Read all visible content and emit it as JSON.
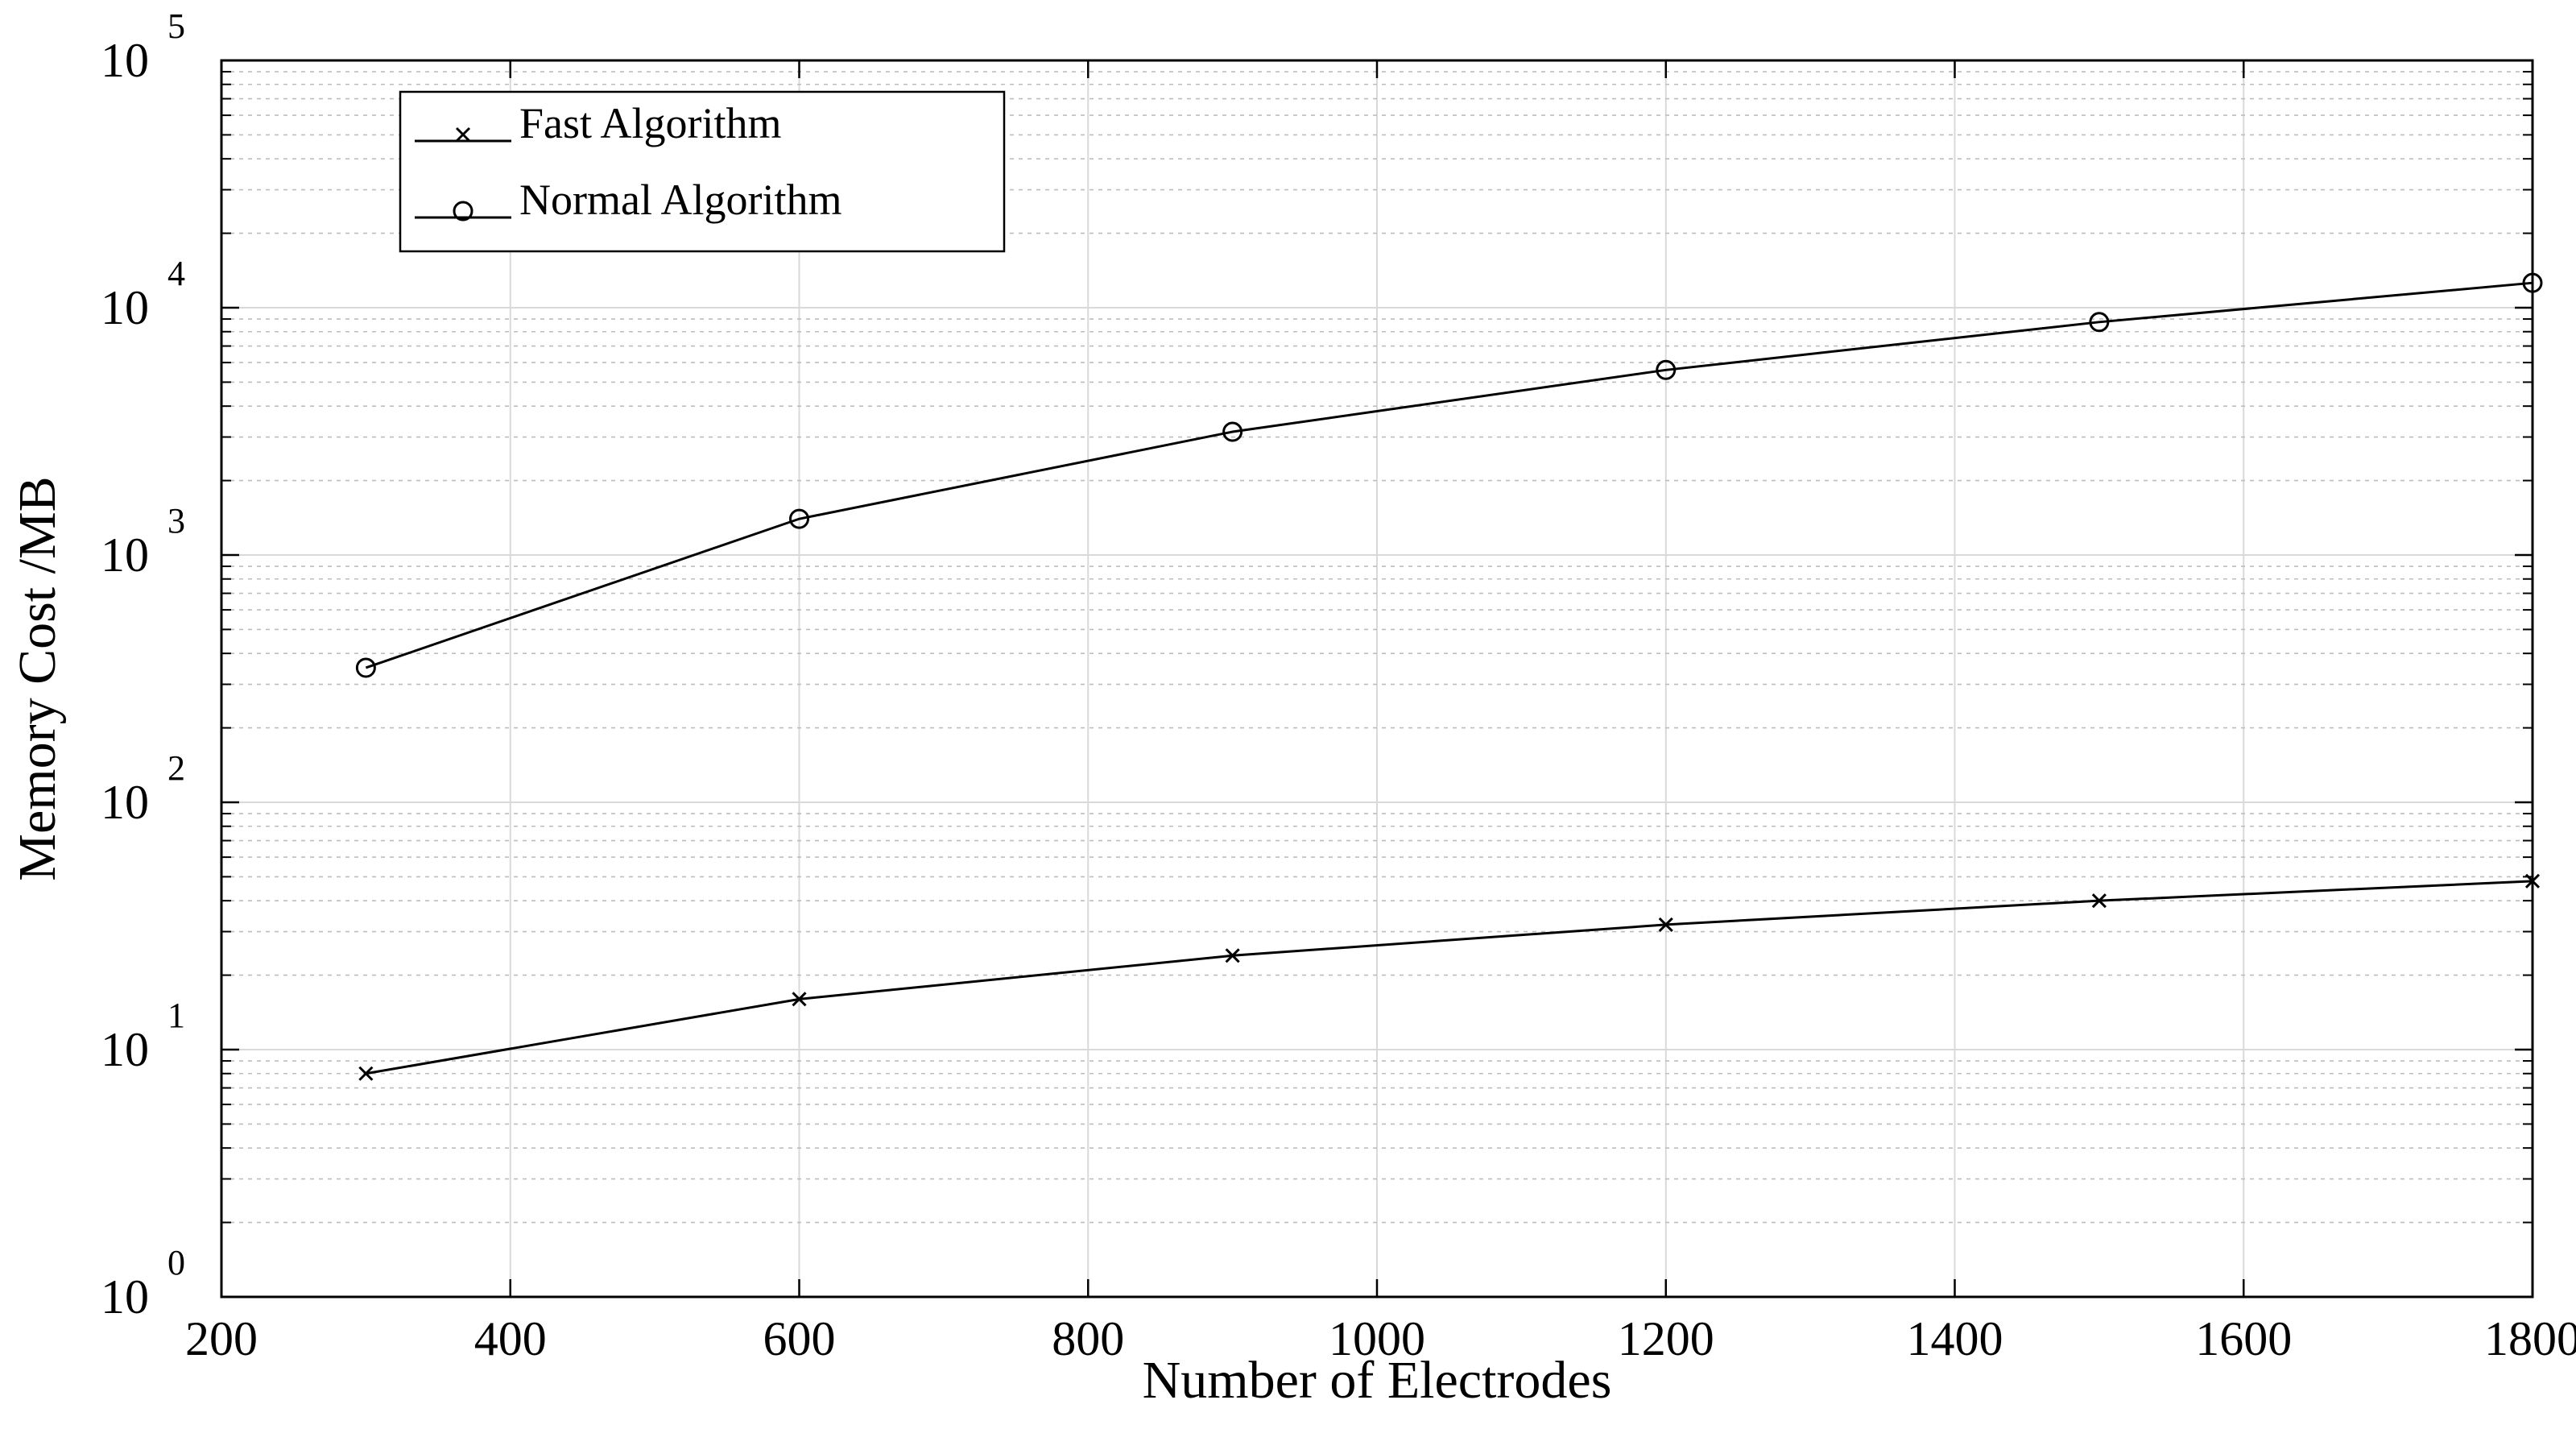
{
  "chart_data": {
    "type": "line",
    "xlabel": "Number of Electrodes",
    "ylabel": "Memory Cost /MB",
    "xlim": [
      200,
      1800
    ],
    "ylim": [
      1,
      100000
    ],
    "yscale": "log",
    "grid": true,
    "minor_grid": true,
    "legend_position": "top-left",
    "x_ticks": [
      200,
      400,
      600,
      800,
      1000,
      1200,
      1400,
      1600,
      1800
    ],
    "x_tick_labels": [
      "200",
      "400",
      "600",
      "800",
      "1000",
      "1200",
      "1400",
      "1600",
      "1800"
    ],
    "y_ticks": [
      1,
      10,
      100,
      1000,
      10000,
      100000
    ],
    "y_tick_base": "10",
    "y_tick_exponents": [
      "0",
      "1",
      "2",
      "3",
      "4",
      "5"
    ],
    "series": [
      {
        "name": "Fast Algorithm",
        "marker": "x",
        "x": [
          300,
          600,
          900,
          1200,
          1500,
          1800
        ],
        "y": [
          8,
          16,
          24,
          32,
          40,
          48
        ]
      },
      {
        "name": "Normal Algorithm",
        "marker": "o",
        "x": [
          300,
          600,
          900,
          1200,
          1500,
          1800
        ],
        "y": [
          350,
          1400,
          3150,
          5600,
          8750,
          12600
        ]
      }
    ],
    "colors": {
      "line": "#000000",
      "grid": "#d9d9d9",
      "axes": "#000000"
    }
  }
}
